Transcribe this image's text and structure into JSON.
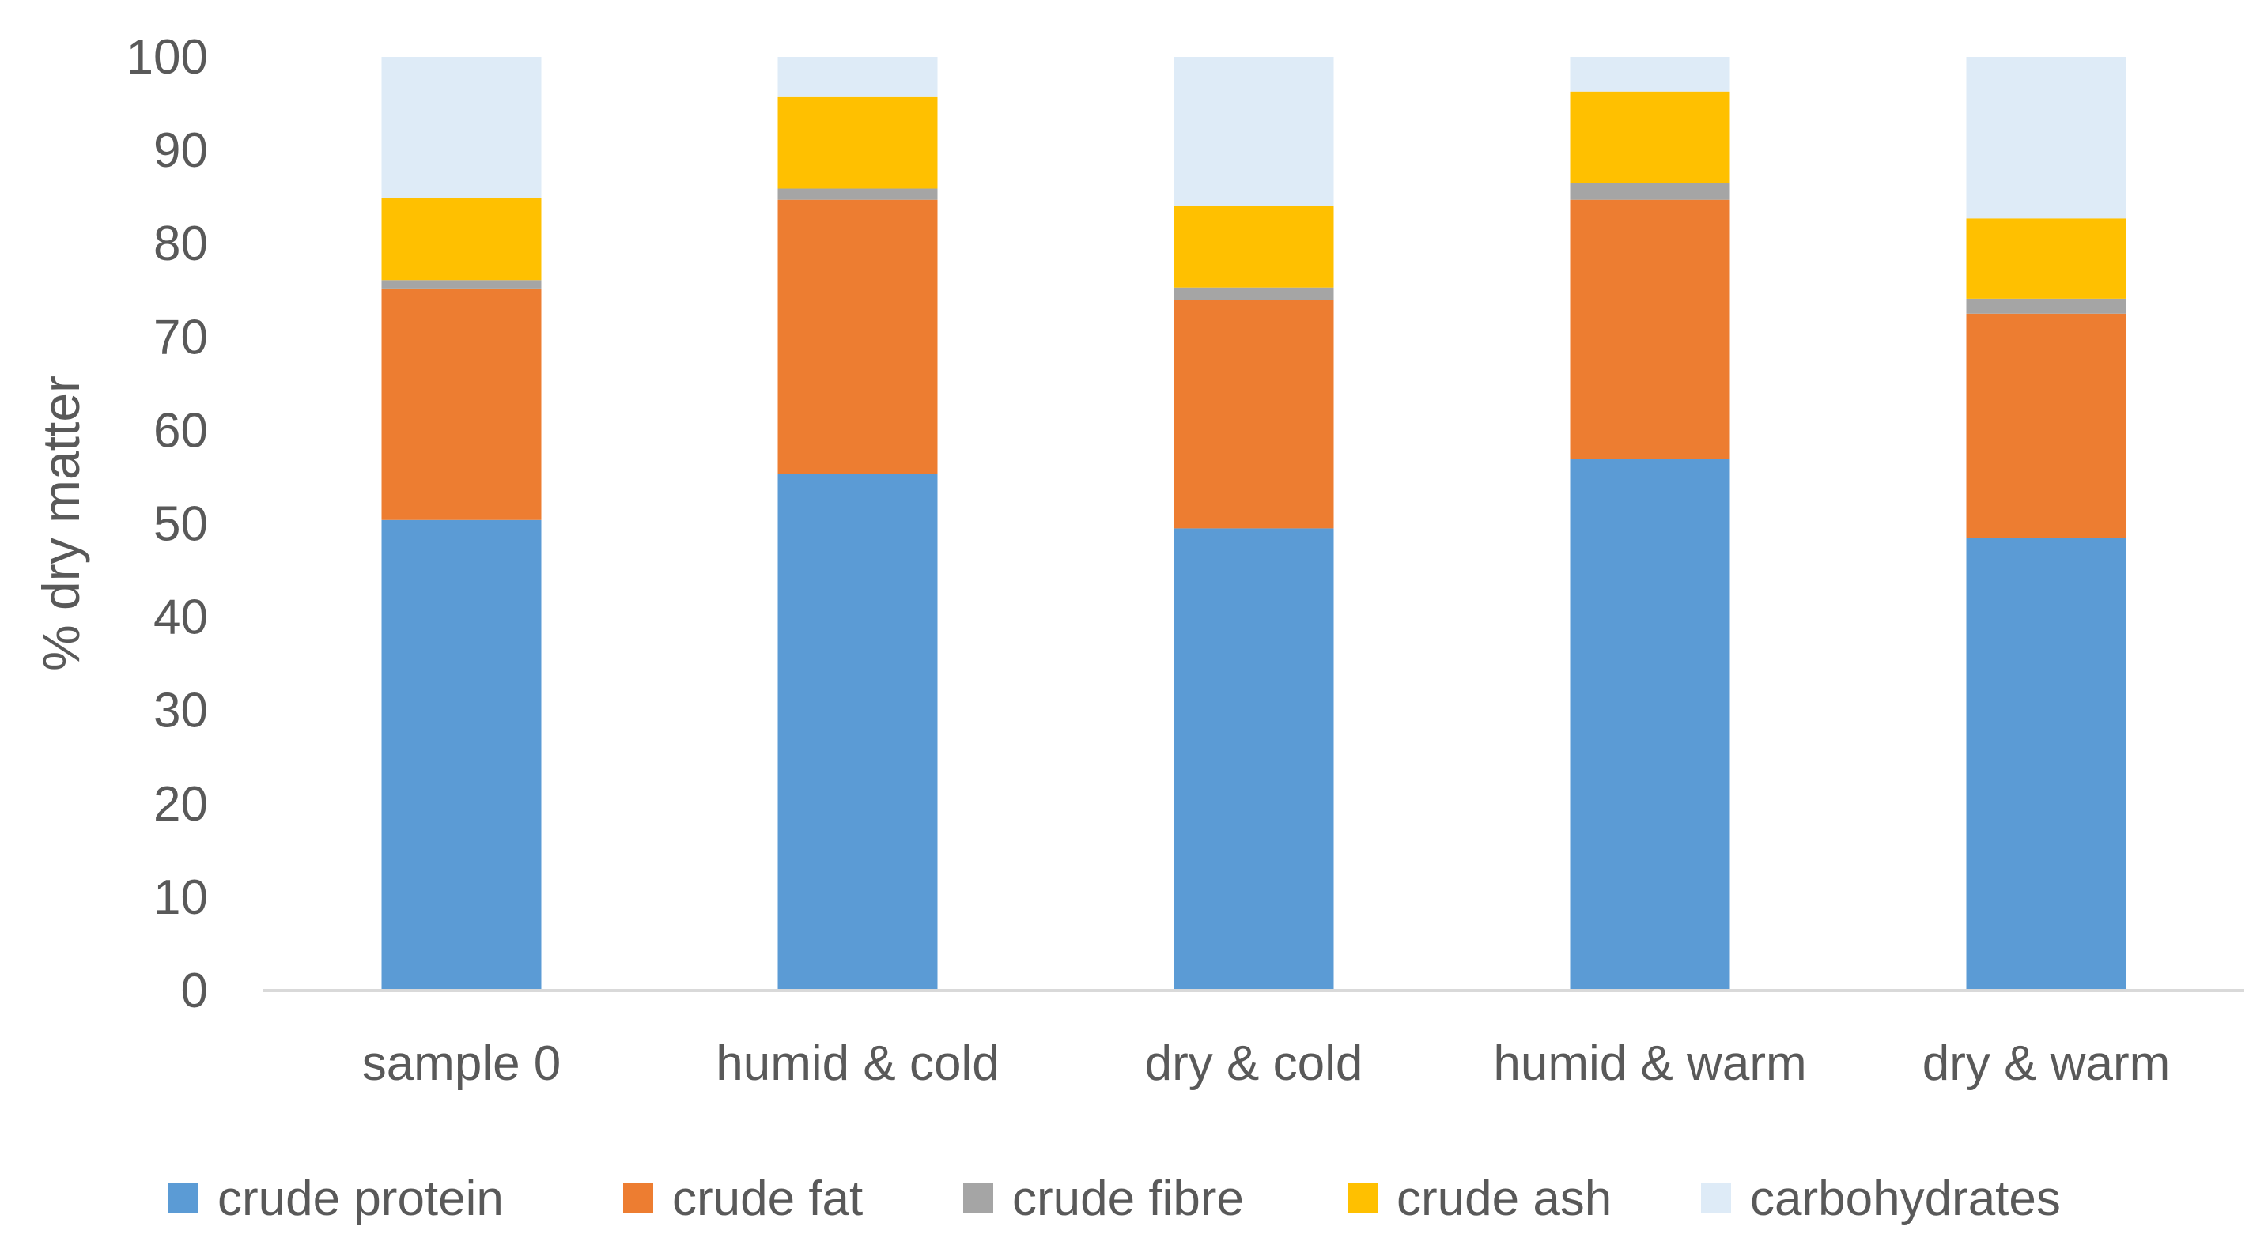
{
  "chart_data": {
    "type": "bar",
    "stacked": true,
    "title": "",
    "xlabel": "",
    "ylabel": "% dry matter",
    "ylim": [
      0,
      100
    ],
    "yticks": [
      "0",
      "10",
      "20",
      "30",
      "40",
      "50",
      "60",
      "70",
      "80",
      "90",
      "100"
    ],
    "grid": false,
    "legend_position": "bottom",
    "categories": [
      "sample 0",
      "humid & cold",
      "dry & cold",
      "humid & warm",
      "dry & warm"
    ],
    "series": [
      {
        "name": "crude protein",
        "color": "#5B9BD5",
        "values": [
          50.4,
          55.3,
          49.5,
          56.9,
          48.5
        ]
      },
      {
        "name": "crude fat",
        "color": "#ED7D31",
        "values": [
          24.8,
          29.4,
          24.5,
          27.8,
          24.0
        ]
      },
      {
        "name": "crude fibre",
        "color": "#A5A5A5",
        "values": [
          0.9,
          1.2,
          1.3,
          1.8,
          1.6
        ]
      },
      {
        "name": "crude ash",
        "color": "#FFC000",
        "values": [
          8.8,
          9.8,
          8.7,
          9.8,
          8.6
        ]
      },
      {
        "name": "carbohydrates",
        "color": "#DEEBF7",
        "values": [
          15.1,
          4.3,
          16.0,
          3.7,
          17.3
        ]
      }
    ]
  }
}
